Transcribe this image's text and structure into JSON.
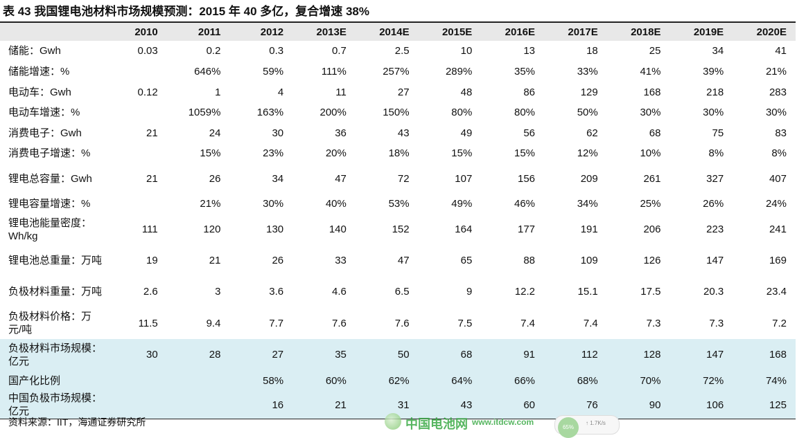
{
  "title": "表 43 我国锂电池材料市场规模预测：2015 年 40 多亿，复合增速 38%",
  "columns": [
    "2010",
    "2011",
    "2012",
    "2013E",
    "2014E",
    "2015E",
    "2016E",
    "2017E",
    "2018E",
    "2019E",
    "2020E"
  ],
  "rows": [
    {
      "label": "储能：Gwh",
      "values": [
        "0.03",
        "0.2",
        "0.3",
        "0.7",
        "2.5",
        "10",
        "13",
        "18",
        "25",
        "34",
        "41"
      ]
    },
    {
      "label": "储能增速：%",
      "values": [
        "",
        "646%",
        "59%",
        "111%",
        "257%",
        "289%",
        "35%",
        "33%",
        "41%",
        "39%",
        "21%"
      ]
    },
    {
      "label": "电动车：Gwh",
      "values": [
        "0.12",
        "1",
        "4",
        "11",
        "27",
        "48",
        "86",
        "129",
        "168",
        "218",
        "283"
      ]
    },
    {
      "label": "电动车增速：%",
      "values": [
        "",
        "1059%",
        "163%",
        "200%",
        "150%",
        "80%",
        "80%",
        "50%",
        "30%",
        "30%",
        "30%"
      ]
    },
    {
      "label": "消费电子：Gwh",
      "values": [
        "21",
        "24",
        "30",
        "36",
        "43",
        "49",
        "56",
        "62",
        "68",
        "75",
        "83"
      ]
    },
    {
      "label": "消费电子增速：%",
      "values": [
        "",
        "15%",
        "23%",
        "20%",
        "18%",
        "15%",
        "15%",
        "12%",
        "10%",
        "8%",
        "8%"
      ]
    },
    {
      "label": "锂电总容量：Gwh",
      "values": [
        "21",
        "26",
        "34",
        "47",
        "72",
        "107",
        "156",
        "209",
        "261",
        "327",
        "407"
      ]
    },
    {
      "label": "锂电容量增速：%",
      "values": [
        "",
        "21%",
        "30%",
        "40%",
        "53%",
        "49%",
        "46%",
        "34%",
        "25%",
        "26%",
        "24%"
      ]
    },
    {
      "label": "锂电池能量密度：Wh/kg",
      "values": [
        "111",
        "120",
        "130",
        "140",
        "152",
        "164",
        "177",
        "191",
        "206",
        "223",
        "241"
      ]
    },
    {
      "label": "锂电池总重量：万吨",
      "values": [
        "19",
        "21",
        "26",
        "33",
        "47",
        "65",
        "88",
        "109",
        "126",
        "147",
        "169"
      ]
    },
    {
      "label": "负极材料重量：万吨",
      "values": [
        "2.6",
        "3",
        "3.6",
        "4.6",
        "6.5",
        "9",
        "12.2",
        "15.1",
        "17.5",
        "20.3",
        "23.4"
      ]
    },
    {
      "label": "负极材料价格：万元/吨",
      "values": [
        "11.5",
        "9.4",
        "7.7",
        "7.6",
        "7.6",
        "7.5",
        "7.4",
        "7.4",
        "7.3",
        "7.3",
        "7.2"
      ]
    },
    {
      "label": "负极材料市场规模：亿元",
      "values": [
        "30",
        "28",
        "27",
        "35",
        "50",
        "68",
        "91",
        "112",
        "128",
        "147",
        "168"
      ]
    },
    {
      "label": "国产化比例",
      "values": [
        "",
        "",
        "58%",
        "60%",
        "62%",
        "64%",
        "66%",
        "68%",
        "70%",
        "72%",
        "74%"
      ]
    },
    {
      "label": "中国负极市场规模：亿元",
      "values": [
        "",
        "",
        "16",
        "21",
        "31",
        "43",
        "60",
        "76",
        "90",
        "106",
        "125"
      ]
    }
  ],
  "highlight_color": "#daeef3",
  "source": "资料来源：IIT，海通证券研究所",
  "watermark": {
    "name": "中国电池网",
    "url": "www.itdcw.com"
  },
  "widget": {
    "percent": "65%",
    "speed": "1.7K/s"
  }
}
